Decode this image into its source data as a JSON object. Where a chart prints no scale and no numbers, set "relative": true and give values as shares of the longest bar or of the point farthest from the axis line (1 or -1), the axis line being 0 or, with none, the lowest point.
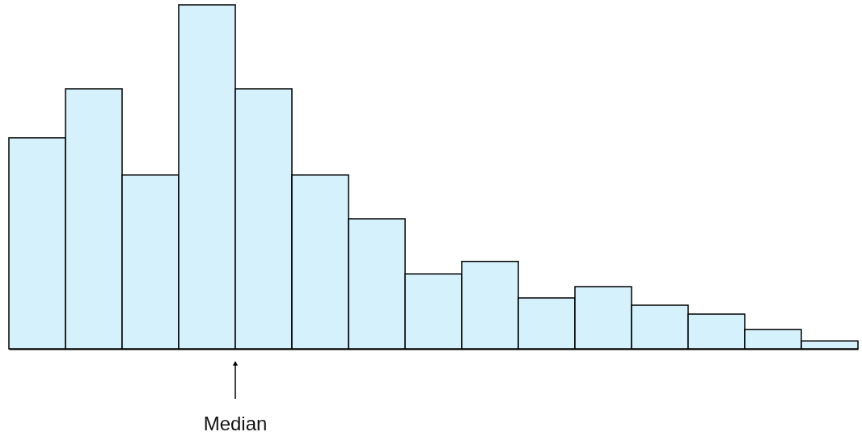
{
  "chart_data": {
    "type": "bar",
    "relative": true,
    "categories": [
      null,
      null,
      null,
      null,
      null,
      null,
      null,
      null,
      null,
      null,
      null,
      null,
      null,
      null,
      null
    ],
    "values": [
      0.613,
      0.756,
      0.505,
      1,
      0.756,
      0.505,
      0.378,
      0.218,
      0.254,
      0.148,
      0.181,
      0.127,
      0.101,
      0.056,
      0.023
    ],
    "color": "#d4f1fc",
    "tick_labels": false,
    "annotations": [
      "Median"
    ]
  }
}
